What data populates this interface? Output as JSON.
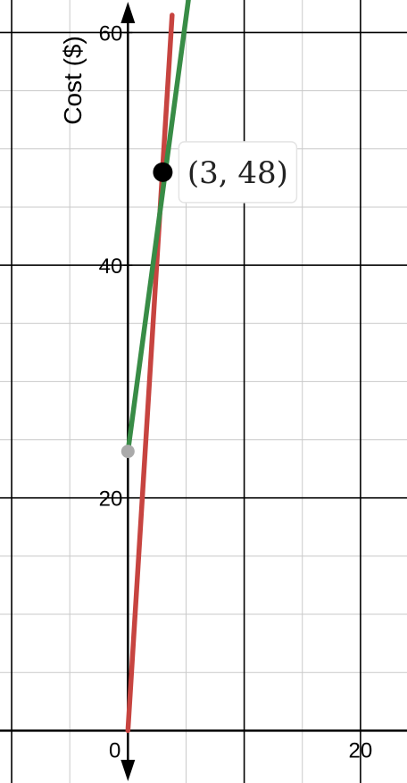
{
  "chart_data": {
    "type": "line",
    "ylabel": "Cost ($)",
    "xlim": [
      -11,
      24
    ],
    "ylim": [
      -4.5,
      62.8
    ],
    "grid": true,
    "x_ticks": [
      0,
      20
    ],
    "y_ticks": [
      20,
      40,
      60
    ],
    "x_tick_labels": [
      "0",
      "20"
    ],
    "y_tick_labels": [
      "20",
      "40",
      "60"
    ],
    "series": [
      {
        "color": "#c74440",
        "x": [
          0,
          3.8
        ],
        "y": [
          0,
          61.5
        ]
      },
      {
        "color": "#388c46",
        "x": [
          0,
          5.2
        ],
        "y": [
          24,
          62.8
        ]
      }
    ],
    "points": [
      {
        "x": 0,
        "y": 24,
        "color": "#aaaaaa"
      },
      {
        "x": 3,
        "y": 48,
        "color": "#000000",
        "label": "(3, 48)"
      }
    ]
  }
}
